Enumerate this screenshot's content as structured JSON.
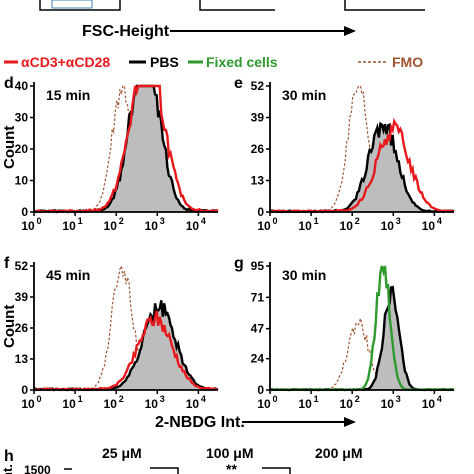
{
  "top_strip": {
    "xlabel": "FSC-Height"
  },
  "legend": [
    {
      "label": "αCD3+αCD28",
      "color": "#e8191c",
      "style": "solid"
    },
    {
      "label": "PBS",
      "color": "#000000",
      "style": "solid"
    },
    {
      "label": "Fixed cells",
      "color": "#2e9a2e",
      "style": "solid"
    },
    {
      "label": "FMO",
      "color": "#a0522d",
      "style": "dashed"
    }
  ],
  "colors": {
    "red": "#e8191c",
    "black": "#000000",
    "green": "#2e9a2e",
    "fmo": "#a0522d",
    "fill": "#bdbdbd"
  },
  "shared_xlabel": "2-NBDG Int.",
  "ylabel": "Count",
  "chart_data": [
    {
      "panel": "d",
      "type": "area",
      "title": "15 min",
      "ylabel": "Count",
      "xscale": "log",
      "xlim": [
        1,
        30000
      ],
      "yticks": [
        0,
        10,
        20,
        30,
        40
      ],
      "xticks": [
        {
          "base": "10",
          "exp": "0"
        },
        {
          "base": "10",
          "exp": "1"
        },
        {
          "base": "10",
          "exp": "2"
        },
        {
          "base": "10",
          "exp": "3"
        },
        {
          "base": "10",
          "exp": "4"
        }
      ],
      "series": [
        {
          "key": "fmo",
          "peak_log": 2.15,
          "width": 0.25,
          "peak": 40
        },
        {
          "key": "pbs",
          "peak_log": 2.7,
          "width": 0.35,
          "peak": 52,
          "filled": true
        },
        {
          "key": "stim",
          "peak_log": 2.75,
          "width": 0.4,
          "peak": 49
        }
      ]
    },
    {
      "panel": "e",
      "type": "area",
      "title": "30 min",
      "ylabel": "",
      "xscale": "log",
      "xlim": [
        1,
        30000
      ],
      "yticks": [
        0,
        13,
        26,
        39,
        52
      ],
      "xticks": [
        {
          "base": "10",
          "exp": "0"
        },
        {
          "base": "10",
          "exp": "1"
        },
        {
          "base": "10",
          "exp": "2"
        },
        {
          "base": "10",
          "exp": "3"
        },
        {
          "base": "10",
          "exp": "4"
        }
      ],
      "series": [
        {
          "key": "fmo",
          "peak_log": 2.15,
          "width": 0.25,
          "peak": 50
        },
        {
          "key": "pbs",
          "peak_log": 2.75,
          "width": 0.35,
          "peak": 36,
          "filled": true
        },
        {
          "key": "stim",
          "peak_log": 3.0,
          "width": 0.4,
          "peak": 34
        }
      ]
    },
    {
      "panel": "f",
      "type": "area",
      "title": "45 min",
      "ylabel": "Count",
      "xscale": "log",
      "xlim": [
        1,
        30000
      ],
      "yticks": [
        0,
        13,
        26,
        39,
        52
      ],
      "xticks": [
        {
          "base": "10",
          "exp": "0"
        },
        {
          "base": "10",
          "exp": "1"
        },
        {
          "base": "10",
          "exp": "2"
        },
        {
          "base": "10",
          "exp": "3"
        },
        {
          "base": "10",
          "exp": "4"
        }
      ],
      "series": [
        {
          "key": "fmo",
          "peak_log": 2.15,
          "width": 0.25,
          "peak": 52
        },
        {
          "key": "pbs",
          "peak_log": 3.05,
          "width": 0.4,
          "peak": 34,
          "filled": true
        },
        {
          "key": "stim",
          "peak_log": 2.95,
          "width": 0.42,
          "peak": 30
        }
      ]
    },
    {
      "panel": "g",
      "type": "area",
      "title": "30 min",
      "ylabel": "",
      "xscale": "log",
      "xlim": [
        1,
        30000
      ],
      "yticks": [
        0,
        24,
        47,
        71,
        95
      ],
      "xticks": [
        {
          "base": "10",
          "exp": "0"
        },
        {
          "base": "10",
          "exp": "1"
        },
        {
          "base": "10",
          "exp": "2"
        },
        {
          "base": "10",
          "exp": "3"
        },
        {
          "base": "10",
          "exp": "4"
        }
      ],
      "series": [
        {
          "key": "fmo",
          "peak_log": 2.15,
          "width": 0.25,
          "peak": 52
        },
        {
          "key": "fixed",
          "peak_log": 2.75,
          "width": 0.17,
          "peak": 93
        },
        {
          "key": "pbs",
          "peak_log": 2.95,
          "width": 0.19,
          "peak": 73,
          "filled": true
        }
      ]
    }
  ],
  "panel_h": {
    "letter": "h",
    "concentrations": [
      "25 μM",
      "100 μM",
      "200 μM"
    ],
    "ytick": "1500",
    "ylabel_partial": "nt.",
    "significance": "**"
  }
}
